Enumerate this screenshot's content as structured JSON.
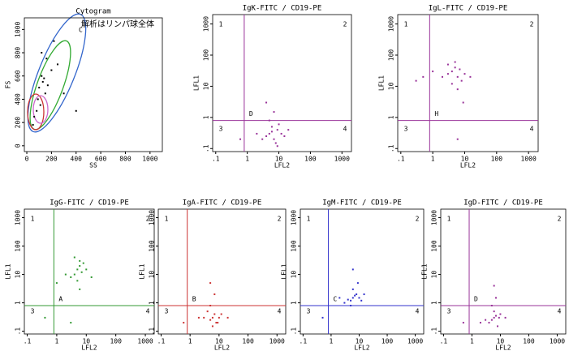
{
  "chart_data": [
    {
      "type": "scatter",
      "title": "Cytogram",
      "xlabel": "SS",
      "ylabel": "FS",
      "annotation": "解析はリンパ球全体",
      "gate_label": "C",
      "xlim": [
        -20,
        1100
      ],
      "ylim": [
        -50,
        1100
      ],
      "log_scale": false,
      "xticks": [
        0,
        200,
        400,
        600,
        800,
        1000
      ],
      "yticks": [
        0,
        200,
        400,
        600,
        800,
        1000
      ],
      "color": "#000000",
      "x": [
        100,
        130,
        150,
        120,
        90,
        170,
        110,
        200,
        80,
        140,
        250,
        60,
        300,
        160,
        400,
        120,
        50,
        220
      ],
      "y": [
        500,
        550,
        450,
        600,
        400,
        520,
        350,
        650,
        300,
        580,
        700,
        250,
        450,
        750,
        300,
        800,
        180,
        900
      ]
    },
    {
      "type": "quadrant",
      "title": "IgK-FITC / CD19-PE",
      "xlabel": "LFL2",
      "ylabel": "LFL1",
      "gate_label": "D",
      "quadrant_labels": [
        "1",
        "2",
        "3",
        "4"
      ],
      "color": "#993399",
      "xdivider": 0.8,
      "ydivider": 0.8,
      "xlim": [
        0.08,
        2000
      ],
      "ylim": [
        0.08,
        2000
      ],
      "log_scale": true,
      "xticks": [
        {
          "value": 0.1,
          "label": ".1"
        },
        1,
        10,
        100,
        1000
      ],
      "yticks": [
        {
          "value": 0.1,
          "label": ".1"
        },
        1,
        10,
        100,
        1000
      ],
      "x": [
        5,
        7,
        9,
        4,
        6,
        12,
        8,
        3,
        10,
        6,
        15,
        5,
        2,
        7,
        20,
        0.6,
        9,
        4
      ],
      "y": [
        0.3,
        0.2,
        0.4,
        0.25,
        0.5,
        0.3,
        0.15,
        0.2,
        0.6,
        0.35,
        0.25,
        0.8,
        0.3,
        1.5,
        0.4,
        0.2,
        0.12,
        3
      ]
    },
    {
      "type": "quadrant",
      "title": "IgL-FITC / CD19-PE",
      "xlabel": "LFL2",
      "ylabel": "LFL1",
      "gate_label": "H",
      "quadrant_labels": [
        "1",
        "2",
        "3",
        "4"
      ],
      "color": "#993399",
      "xdivider": 0.8,
      "ydivider": 0.8,
      "xlim": [
        0.08,
        2000
      ],
      "ylim": [
        0.08,
        2000
      ],
      "log_scale": true,
      "xticks": [
        {
          "value": 0.1,
          "label": ".1"
        },
        1,
        10,
        100,
        1000
      ],
      "yticks": [
        {
          "value": 0.1,
          "label": ".1"
        },
        1,
        10,
        100,
        1000
      ],
      "x": [
        4,
        6,
        5,
        3,
        8,
        7,
        2,
        10,
        5,
        4,
        1,
        15,
        6,
        3,
        0.5,
        6,
        9,
        0.3
      ],
      "y": [
        30,
        20,
        40,
        25,
        15,
        35,
        20,
        25,
        60,
        12,
        30,
        20,
        8,
        50,
        20,
        0.2,
        3,
        15
      ]
    },
    {
      "type": "quadrant",
      "title": "IgG-FITC / CD19-PE",
      "xlabel": "LFL2",
      "ylabel": "LFL1",
      "gate_label": "A",
      "quadrant_labels": [
        "1",
        "2",
        "3",
        "4"
      ],
      "color": "#339933",
      "xdivider": 0.8,
      "ydivider": 0.8,
      "xlim": [
        0.08,
        2000
      ],
      "ylim": [
        0.08,
        2000
      ],
      "log_scale": true,
      "xticks": [
        {
          "value": 0.1,
          "label": ".1"
        },
        1,
        10,
        100,
        1000
      ],
      "yticks": [
        {
          "value": 0.1,
          "label": ".1"
        },
        1,
        10,
        100,
        1000
      ],
      "x": [
        5,
        4,
        6,
        7,
        3,
        8,
        5,
        10,
        2,
        6,
        4,
        15,
        1,
        6,
        0.4,
        3
      ],
      "y": [
        15,
        10,
        20,
        12,
        8,
        25,
        6,
        15,
        10,
        30,
        40,
        8,
        5,
        3,
        0.3,
        0.2
      ]
    },
    {
      "type": "quadrant",
      "title": "IgA-FITC / CD19-PE",
      "xlabel": "LFL2",
      "ylabel": "LFL1",
      "gate_label": "B",
      "quadrant_labels": [
        "1",
        "2",
        "3",
        "4"
      ],
      "color": "#cc3333",
      "xdivider": 0.8,
      "ydivider": 0.8,
      "xlim": [
        0.08,
        2000
      ],
      "ylim": [
        0.08,
        2000
      ],
      "log_scale": true,
      "xticks": [
        {
          "value": 0.1,
          "label": ".1"
        },
        1,
        10,
        100,
        1000
      ],
      "yticks": [
        {
          "value": 0.1,
          "label": ".1"
        },
        1,
        10,
        100,
        1000
      ],
      "x": [
        6,
        5,
        7,
        8,
        4,
        10,
        6,
        3,
        12,
        5,
        9,
        2,
        0.6,
        20,
        7,
        5
      ],
      "y": [
        0.3,
        0.25,
        0.4,
        0.2,
        0.5,
        0.3,
        0.15,
        0.3,
        0.4,
        0.8,
        0.2,
        0.3,
        0.2,
        0.3,
        2,
        5
      ]
    },
    {
      "type": "quadrant",
      "title": "IgM-FITC / CD19-PE",
      "xlabel": "LFL2",
      "ylabel": "LFL1",
      "gate_label": "C",
      "quadrant_labels": [
        "1",
        "2",
        "3",
        "4"
      ],
      "color": "#3333cc",
      "xdivider": 0.8,
      "ydivider": 0.8,
      "xlim": [
        0.08,
        2000
      ],
      "ylim": [
        0.08,
        2000
      ],
      "log_scale": true,
      "xticks": [
        {
          "value": 0.1,
          "label": ".1"
        },
        1,
        10,
        100,
        1000
      ],
      "yticks": [
        {
          "value": 0.1,
          "label": ".1"
        },
        1,
        10,
        100,
        1000
      ],
      "x": [
        6,
        5,
        8,
        4,
        7,
        10,
        3,
        6,
        12,
        5,
        2,
        15,
        0.5,
        9,
        6
      ],
      "y": [
        1.5,
        1.2,
        2,
        1.3,
        1.8,
        1.5,
        1,
        3,
        1.2,
        0.8,
        1.5,
        2,
        0.3,
        5,
        15
      ]
    },
    {
      "type": "quadrant",
      "title": "IgD-FITC / CD19-PE",
      "xlabel": "LFL2",
      "ylabel": "LFL1",
      "gate_label": "D",
      "quadrant_labels": [
        "1",
        "2",
        "3",
        "4"
      ],
      "color": "#993399",
      "xdivider": 0.8,
      "ydivider": 0.8,
      "xlim": [
        0.08,
        2000
      ],
      "ylim": [
        0.08,
        2000
      ],
      "log_scale": true,
      "xticks": [
        {
          "value": 0.1,
          "label": ".1"
        },
        1,
        10,
        100,
        1000
      ],
      "yticks": [
        {
          "value": 0.1,
          "label": ".1"
        },
        1,
        10,
        100,
        1000
      ],
      "x": [
        6,
        5,
        7,
        4,
        9,
        6,
        8,
        3,
        10,
        5,
        15,
        2,
        0.5,
        7,
        6
      ],
      "y": [
        0.3,
        0.25,
        0.35,
        0.2,
        0.3,
        0.5,
        0.15,
        0.25,
        0.4,
        0.8,
        0.3,
        0.2,
        0.2,
        1.5,
        4
      ]
    }
  ]
}
